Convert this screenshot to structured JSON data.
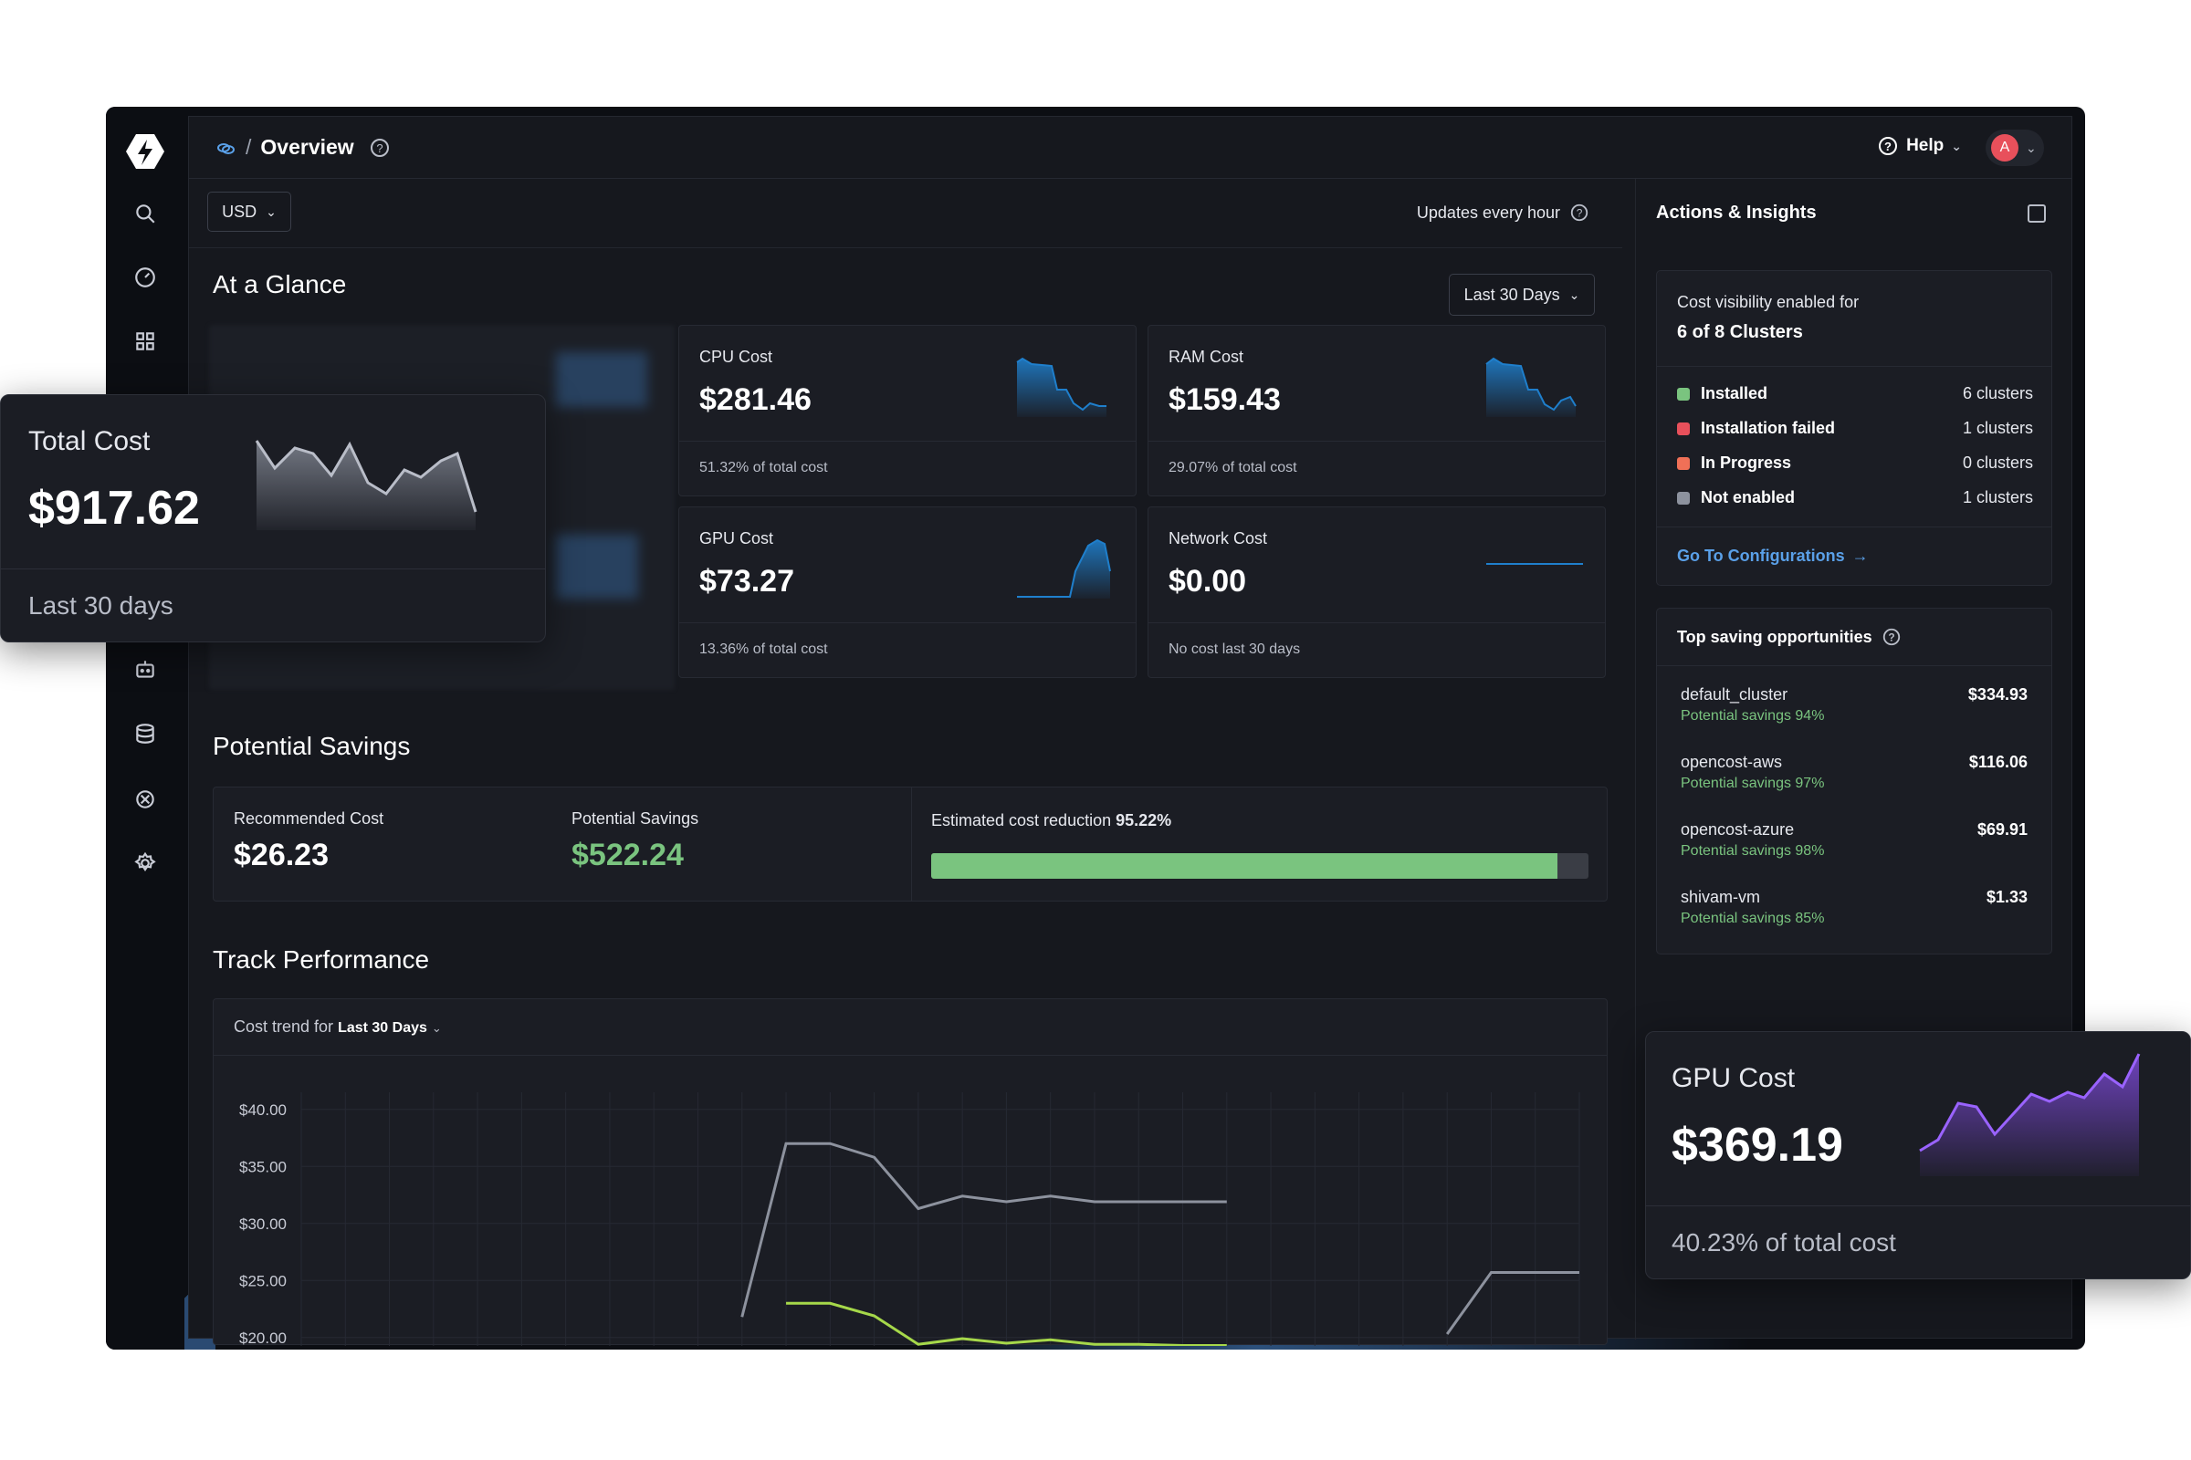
{
  "breadcrumb": {
    "separator": "/",
    "title": "Overview"
  },
  "header": {
    "help_label": "Help",
    "avatar_initial": "A"
  },
  "toolbar": {
    "currency": "USD",
    "updates": "Updates every hour"
  },
  "glance": {
    "title": "At a Glance",
    "range": "Last 30 Days",
    "cards": [
      {
        "label": "CPU Cost",
        "value": "$281.46",
        "foot": "51.32% of total cost"
      },
      {
        "label": "RAM Cost",
        "value": "$159.43",
        "foot": "29.07% of total cost"
      },
      {
        "label": "GPU Cost",
        "value": "$73.27",
        "foot": "13.36% of total cost"
      },
      {
        "label": "Network Cost",
        "value": "$0.00",
        "foot": "No cost last 30 days"
      }
    ]
  },
  "savings": {
    "title": "Potential Savings",
    "recommended_label": "Recommended Cost",
    "recommended_value": "$26.23",
    "potential_label": "Potential Savings",
    "potential_value": "$522.24",
    "estimate_label": "Estimated cost reduction",
    "estimate_value": "95.22%",
    "estimate_fraction": 0.9522
  },
  "performance": {
    "title": "Track Performance",
    "trend_label": "Cost trend for",
    "trend_range": "Last 30 Days"
  },
  "chart_data": {
    "type": "line",
    "title": "",
    "ylabel": "",
    "xlabel": "",
    "yticks": [
      "$40.00",
      "$35.00",
      "$30.00",
      "$25.00",
      "$20.00"
    ],
    "ylim": [
      17.5,
      41.5
    ],
    "grid": true,
    "x": [
      0,
      1,
      2,
      3,
      4,
      5,
      6,
      7,
      8,
      9,
      10,
      11,
      12,
      13,
      14,
      15,
      16,
      17,
      18,
      19,
      20,
      21,
      22,
      23,
      24,
      25,
      26,
      27,
      28,
      29
    ],
    "series": [
      {
        "values": [
          null,
          null,
          null,
          null,
          null,
          null,
          null,
          null,
          null,
          null,
          21.8,
          37.0,
          37.0,
          35.8,
          31.3,
          32.4,
          31.9,
          32.4,
          31.9,
          31.9,
          31.9,
          31.9,
          null,
          null,
          null,
          null,
          20.3,
          25.7,
          25.7,
          25.7
        ],
        "color": "#8d929e"
      },
      {
        "values": [
          null,
          null,
          null,
          null,
          null,
          null,
          null,
          null,
          null,
          null,
          null,
          23.0,
          23.0,
          21.9,
          19.4,
          19.9,
          19.5,
          19.8,
          19.4,
          19.4,
          19.3,
          19.3,
          null,
          null,
          null,
          null,
          null,
          null,
          null,
          null
        ],
        "color": "#a6d84a"
      }
    ]
  },
  "insights": {
    "title": "Actions & Insights",
    "visibility_label": "Cost visibility enabled for",
    "visibility_count": "6 of 8 Clusters",
    "statuses": [
      {
        "name": "Installed",
        "count": "6 clusters",
        "color": "#7ac47f"
      },
      {
        "name": "Installation failed",
        "count": "1 clusters",
        "color": "#e8505b"
      },
      {
        "name": "In Progress",
        "count": "0 clusters",
        "color": "#f07057"
      },
      {
        "name": "Not enabled",
        "count": "1 clusters",
        "color": "#8d929e"
      }
    ],
    "config_link": "Go To Configurations",
    "top_title": "Top saving opportunities",
    "opportunities": [
      {
        "name": "default_cluster",
        "amount": "$334.93",
        "potential": "Potential savings 94%"
      },
      {
        "name": "opencost-aws",
        "amount": "$116.06",
        "potential": "Potential savings 97%"
      },
      {
        "name": "opencost-azure",
        "amount": "$69.91",
        "potential": "Potential savings 98%"
      },
      {
        "name": "shivam-vm",
        "amount": "$1.33",
        "potential": "Potential savings 85%"
      }
    ]
  },
  "float_total": {
    "label": "Total Cost",
    "value": "$917.62",
    "foot": "Last 30 days"
  },
  "float_gpu": {
    "label": "GPU Cost",
    "value": "$369.19",
    "foot": "40.23% of total cost"
  },
  "colors": {
    "accent_blue": "#1f7fcc",
    "green": "#7ac47f",
    "purple": "#8a4ff0"
  }
}
